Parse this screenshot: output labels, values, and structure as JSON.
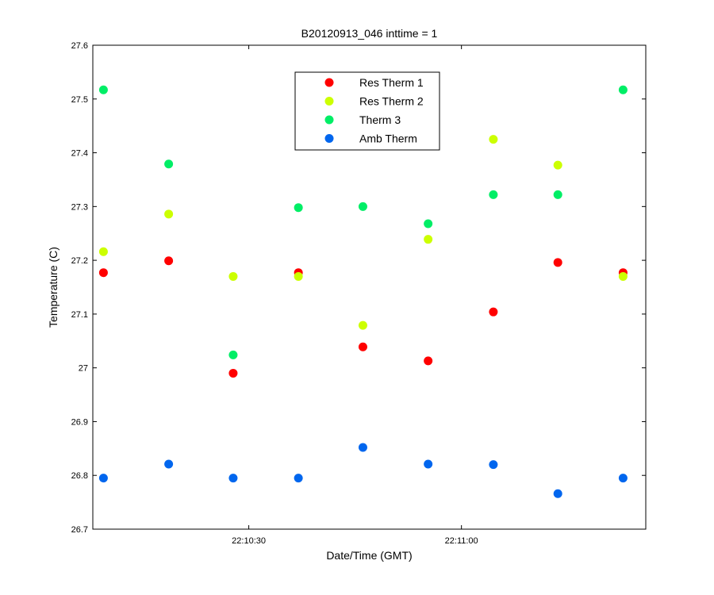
{
  "chart_data": {
    "type": "scatter",
    "title": "B20120913_046 inttime = 1",
    "xlabel": "Date/Time (GMT)",
    "ylabel": "Temperature (C)",
    "ylim": [
      26.7,
      27.6
    ],
    "yticks": [
      26.7,
      26.8,
      26.9,
      27,
      27.1,
      27.2,
      27.3,
      27.4,
      27.5,
      27.6
    ],
    "ytick_labels": [
      "26.7",
      "26.8",
      "26.9",
      "27",
      "27.1",
      "27.2",
      "27.3",
      "27.4",
      "27.5",
      "27.6"
    ],
    "xlim": [
      "22:10:08",
      "22:11:26"
    ],
    "xticks": [
      "22:10:30",
      "22:11:00"
    ],
    "xtick_labels": [
      "22:10:30",
      "22:11:00"
    ],
    "x": [
      "22:10:09.5",
      "22:10:18.7",
      "22:10:27.8",
      "22:10:37.0",
      "22:10:46.1",
      "22:10:55.3",
      "22:11:04.5",
      "22:11:13.6",
      "22:11:22.8"
    ],
    "series": [
      {
        "name": "Res Therm 1",
        "color": "#ff0000",
        "values": [
          27.177,
          27.199,
          26.99,
          27.177,
          27.039,
          27.013,
          27.104,
          27.196,
          27.177
        ]
      },
      {
        "name": "Res Therm 2",
        "color": "#ccff00",
        "values": [
          27.216,
          27.286,
          27.17,
          27.17,
          27.079,
          27.239,
          27.425,
          27.377,
          27.17
        ]
      },
      {
        "name": "Therm 3",
        "color": "#00ee66",
        "values": [
          27.517,
          27.379,
          27.024,
          27.298,
          27.3,
          27.268,
          27.322,
          27.322,
          27.517
        ]
      },
      {
        "name": "Amb Therm",
        "color": "#0066ee",
        "values": [
          26.795,
          26.821,
          26.795,
          26.795,
          26.852,
          26.821,
          26.82,
          26.766,
          26.795
        ]
      }
    ],
    "grid": false,
    "legend_position": "top-center"
  }
}
